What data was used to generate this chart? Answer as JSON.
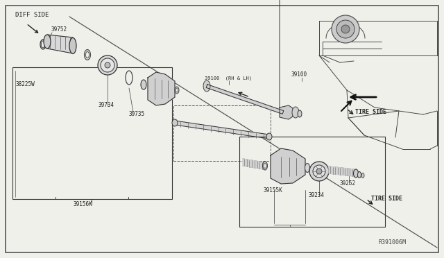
{
  "bg_color": "#f0f0eb",
  "line_color": "#333333",
  "diagram_ref": "R391006M",
  "labels": {
    "diff_side": "DIFF SIDE",
    "tire_side_upper": "TIRE SIDE",
    "tire_side_lower": "TIRE SIDE",
    "part_39752": "39752",
    "part_38225w": "38225W",
    "part_39734": "39734",
    "part_39735": "39735",
    "part_39156k": "39156K",
    "part_39100_rhlh": "39100  (RH & LH)",
    "part_39100": "39100",
    "part_39252": "39252",
    "part_39234": "39234",
    "part_39155k": "39155K"
  }
}
